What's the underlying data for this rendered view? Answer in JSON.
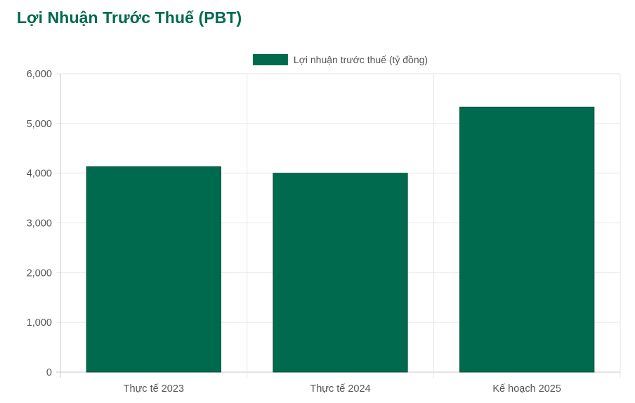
{
  "page": {
    "title": "Lợi Nhuận Trước Thuế (PBT)"
  },
  "chart_data": {
    "type": "bar",
    "categories": [
      "Thực tế 2023",
      "Thực tế 2024",
      "Kế hoạch 2025"
    ],
    "series": [
      {
        "name": "Lợi nhuận trước thuế (tỷ đồng)",
        "values": [
          4130,
          4000,
          5330
        ],
        "color": "#006a4e"
      }
    ],
    "ylim": [
      0,
      6000
    ],
    "yticks": [
      0,
      1000,
      2000,
      3000,
      4000,
      5000,
      6000
    ],
    "ytick_labels": [
      "0",
      "1,000",
      "2,000",
      "3,000",
      "4,000",
      "5,000",
      "6,000"
    ],
    "grid": true,
    "legend_position": "top-center"
  }
}
